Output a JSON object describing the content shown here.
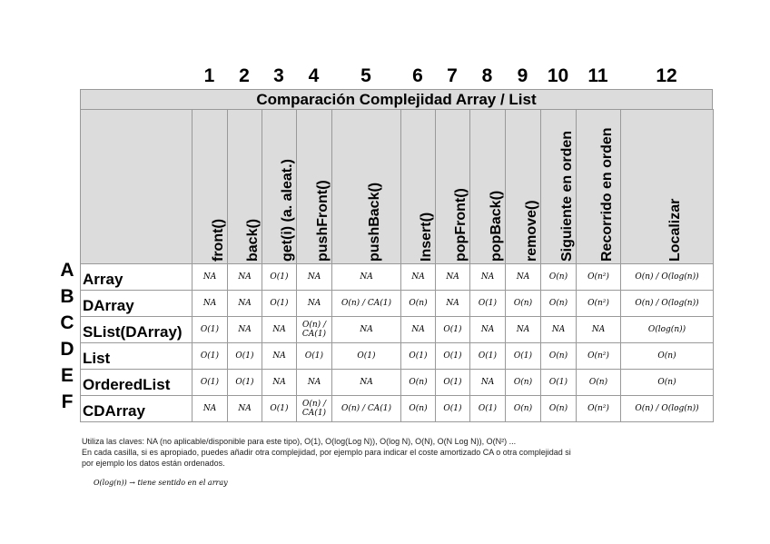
{
  "table": {
    "title": "Comparación Complejidad Array / List",
    "columns": [
      {
        "number": "1",
        "header": "front()"
      },
      {
        "number": "2",
        "header": "back()"
      },
      {
        "number": "3",
        "header": "get(i) (a. aleat.)"
      },
      {
        "number": "4",
        "header": "pushFront()"
      },
      {
        "number": "5",
        "header": "pushBack()"
      },
      {
        "number": "6",
        "header": "Insert()"
      },
      {
        "number": "7",
        "header": "popFront()"
      },
      {
        "number": "8",
        "header": "popBack()"
      },
      {
        "number": "9",
        "header": "remove()"
      },
      {
        "number": "10",
        "header": "Siguiente en orden"
      },
      {
        "number": "11",
        "header": "Recorrido en orden"
      },
      {
        "number": "12",
        "header": "Localizar"
      }
    ],
    "rows": [
      {
        "letter": "A",
        "name": "Array",
        "cells": [
          "NA",
          "NA",
          "O(1)",
          "NA",
          "NA",
          "NA",
          "NA",
          "NA",
          "NA",
          "O(n)",
          "O(n²)",
          "O(n) / O(log(n))"
        ]
      },
      {
        "letter": "B",
        "name": "DArray",
        "cells": [
          "NA",
          "NA",
          "O(1)",
          "NA",
          "O(n) / CA(1)",
          "O(n)",
          "NA",
          "O(1)",
          "O(n)",
          "O(n)",
          "O(n²)",
          "O(n) / O(log(n))"
        ]
      },
      {
        "letter": "C",
        "name": "SList(DArray)",
        "cells": [
          "O(1)",
          "NA",
          "NA",
          "O(n) / CA(1)",
          "NA",
          "NA",
          "O(1)",
          "NA",
          "NA",
          "NA",
          "NA",
          "O(log(n))"
        ]
      },
      {
        "letter": "D",
        "name": "List",
        "cells": [
          "O(1)",
          "O(1)",
          "NA",
          "O(1)",
          "O(1)",
          "O(1)",
          "O(1)",
          "O(1)",
          "O(1)",
          "O(n)",
          "O(n²)",
          "O(n)"
        ]
      },
      {
        "letter": "E",
        "name": "OrderedList",
        "cells": [
          "O(1)",
          "O(1)",
          "NA",
          "NA",
          "NA",
          "O(n)",
          "O(1)",
          "NA",
          "O(n)",
          "O(1)",
          "O(n)",
          "O(n)"
        ]
      },
      {
        "letter": "F",
        "name": "CDArray",
        "cells": [
          "NA",
          "NA",
          "O(1)",
          "O(n) / CA(1)",
          "O(n) / CA(1)",
          "O(n)",
          "O(1)",
          "O(1)",
          "O(n)",
          "O(n)",
          "O(n²)",
          "O(n) / O(log(n))"
        ]
      }
    ]
  },
  "notes": [
    "Utiliza las claves: NA (no aplicable/disponible para este tipo), O(1), O(log(Log N)), O(log N), O(N), O(N Log N)), O(N²) ...",
    "En cada casilla, si es apropiado, puedes añadir otra complejidad, por ejemplo para indicar el coste amortizado CA o otra complejidad si",
    "por ejemplo los datos están ordenados."
  ],
  "handwritten_note": "O(log(n)) → tiene sentido en el array"
}
